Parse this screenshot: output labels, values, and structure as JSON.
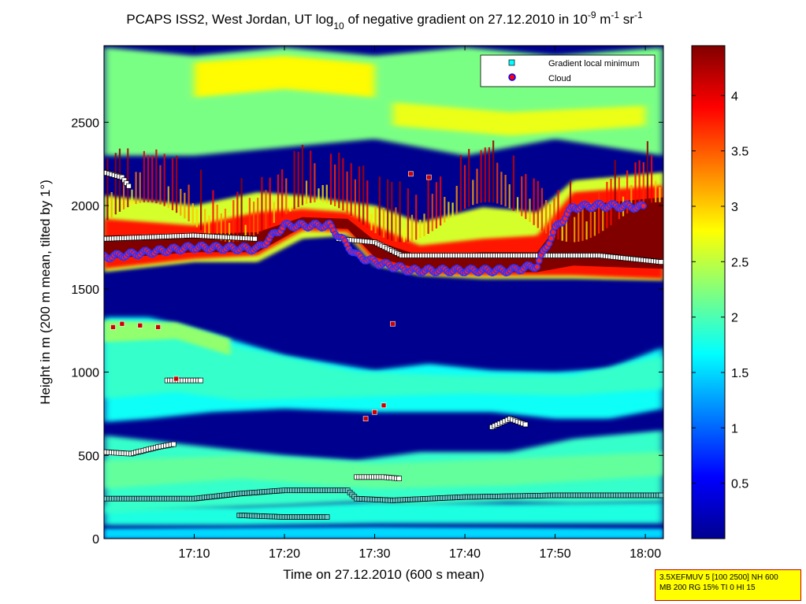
{
  "chart_data": {
    "type": "heatmap",
    "title": {
      "prefix": "PCAPS ISS2, West Jordan, UT log",
      "sub": "10",
      "mid": " of negative gradient on 27.12.2010 in 10",
      "sup1": "-9",
      "mid2": " m",
      "sup2": "-1",
      "mid3": " sr",
      "sup3": "-1"
    },
    "xlabel": "Time on 27.12.2010 (600 s mean)",
    "ylabel": "Height in m (200 m mean, tilted by 1°)",
    "xlim": [
      "17:00",
      "18:02"
    ],
    "ylim": [
      0,
      2960
    ],
    "x_ticks": [
      "17:10",
      "17:20",
      "17:30",
      "17:40",
      "17:50",
      "18:00"
    ],
    "y_ticks": [
      0,
      500,
      1000,
      1500,
      2000,
      2500
    ],
    "colorbar": {
      "range": [
        0,
        4.45
      ],
      "ticks": [
        "0.5",
        "1",
        "1.5",
        "2",
        "2.5",
        "3",
        "3.5",
        "4"
      ],
      "colormap": "jet"
    },
    "legend": {
      "placement": "top-right",
      "entries": [
        {
          "label": "Gradient local minimum",
          "marker": "square",
          "color": "#00ffff"
        },
        {
          "label": "Cloud",
          "marker": "circle",
          "color": "#ff0000",
          "edge": "#0000ff"
        }
      ]
    },
    "layers": [
      {
        "name": "upper cloud band",
        "height_range": [
          1560,
          2200
        ],
        "value": 4.2
      },
      {
        "name": "upper haze",
        "height_range": [
          2300,
          2900
        ],
        "value": 2.6
      },
      {
        "name": "mid aerosol layer",
        "height_range": [
          700,
          1300
        ],
        "value": 1.8
      },
      {
        "name": "boundary layer",
        "height_range": [
          150,
          600
        ],
        "value": 1.7
      }
    ],
    "cloud_base": [
      {
        "t": "17:00",
        "h": 1690
      },
      {
        "t": "17:10",
        "h": 1750
      },
      {
        "t": "17:17",
        "h": 1740
      },
      {
        "t": "17:20",
        "h": 1880
      },
      {
        "t": "17:25",
        "h": 1880
      },
      {
        "t": "17:28",
        "h": 1700
      },
      {
        "t": "17:30",
        "h": 1660
      },
      {
        "t": "17:34",
        "h": 1610
      },
      {
        "t": "17:40",
        "h": 1610
      },
      {
        "t": "17:45",
        "h": 1610
      },
      {
        "t": "17:48",
        "h": 1640
      },
      {
        "t": "17:50",
        "h": 1860
      },
      {
        "t": "17:52",
        "h": 1990
      },
      {
        "t": "17:55",
        "h": 2000
      },
      {
        "t": "18:00",
        "h": 1990
      }
    ],
    "gradient_minimum_tracks": [
      {
        "points": [
          {
            "t": "17:00",
            "h": 240
          },
          {
            "t": "17:10",
            "h": 240
          },
          {
            "t": "17:15",
            "h": 270
          },
          {
            "t": "17:20",
            "h": 290
          },
          {
            "t": "17:27",
            "h": 290
          },
          {
            "t": "17:28",
            "h": 240
          },
          {
            "t": "17:32",
            "h": 230
          },
          {
            "t": "17:40",
            "h": 250
          },
          {
            "t": "17:50",
            "h": 260
          },
          {
            "t": "18:02",
            "h": 260
          }
        ]
      },
      {
        "points": [
          {
            "t": "17:15",
            "h": 140
          },
          {
            "t": "17:20",
            "h": 130
          },
          {
            "t": "17:25",
            "h": 130
          }
        ]
      },
      {
        "points": [
          {
            "t": "17:00",
            "h": 520
          },
          {
            "t": "17:03",
            "h": 510
          },
          {
            "t": "17:06",
            "h": 550
          },
          {
            "t": "17:08",
            "h": 570
          }
        ]
      },
      {
        "points": [
          {
            "t": "17:28",
            "h": 370
          },
          {
            "t": "17:31",
            "h": 370
          },
          {
            "t": "17:33",
            "h": 360
          }
        ]
      },
      {
        "points": [
          {
            "t": "17:07",
            "h": 950
          },
          {
            "t": "17:11",
            "h": 950
          }
        ]
      },
      {
        "points": [
          {
            "t": "17:43",
            "h": 670
          },
          {
            "t": "17:45",
            "h": 720
          },
          {
            "t": "17:47",
            "h": 680
          }
        ]
      },
      {
        "points": [
          {
            "t": "17:26",
            "h": 1800
          },
          {
            "t": "17:30",
            "h": 1780
          },
          {
            "t": "17:33",
            "h": 1700
          },
          {
            "t": "17:40",
            "h": 1700
          },
          {
            "t": "17:50",
            "h": 1700
          },
          {
            "t": "17:55",
            "h": 1700
          },
          {
            "t": "18:02",
            "h": 1660
          }
        ]
      },
      {
        "points": [
          {
            "t": "17:00",
            "h": 2200
          },
          {
            "t": "17:02",
            "h": 2170
          },
          {
            "t": "17:03",
            "h": 2100
          }
        ]
      },
      {
        "points": [
          {
            "t": "17:00",
            "h": 1800
          },
          {
            "t": "17:10",
            "h": 1820
          },
          {
            "t": "17:17",
            "h": 1800
          }
        ]
      }
    ],
    "cloud_markers_red": [
      {
        "t": "17:01",
        "h": 1270
      },
      {
        "t": "17:02",
        "h": 1290
      },
      {
        "t": "17:04",
        "h": 1280
      },
      {
        "t": "17:06",
        "h": 1270
      },
      {
        "t": "17:08",
        "h": 960
      },
      {
        "t": "17:29",
        "h": 720
      },
      {
        "t": "17:30",
        "h": 760
      },
      {
        "t": "17:31",
        "h": 800
      },
      {
        "t": "17:32",
        "h": 1290
      },
      {
        "t": "17:34",
        "h": 2190
      },
      {
        "t": "17:36",
        "h": 2170
      }
    ]
  },
  "info_box": {
    "line1": "3.5XEFMUV 5 [100 2500] NH 600",
    "line2": "MB 200 RG 15% TI 0 HI 15"
  }
}
